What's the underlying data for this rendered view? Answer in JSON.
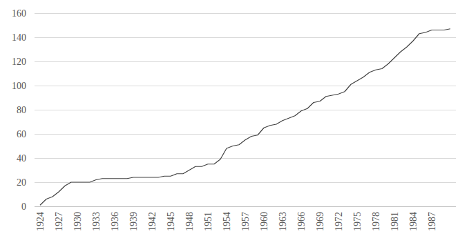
{
  "chart_data": {
    "type": "line",
    "categories": [
      "1924",
      null,
      null,
      "1927",
      null,
      null,
      "1930",
      null,
      null,
      "1933",
      null,
      null,
      "1936",
      null,
      null,
      "1939",
      null,
      null,
      "1942",
      null,
      null,
      "1945",
      null,
      null,
      "1948",
      null,
      null,
      "1951",
      null,
      null,
      "1954",
      null,
      null,
      "1957",
      null,
      null,
      "1960",
      null,
      null,
      "1963",
      null,
      null,
      "1966",
      null,
      null,
      "1969",
      null,
      null,
      "1972",
      null,
      null,
      "1975",
      null,
      null,
      "1978",
      null,
      null,
      "1981",
      null,
      null,
      "1984",
      null,
      null,
      "1987",
      null,
      null,
      null
    ],
    "values": [
      1,
      6,
      8,
      12,
      17,
      20,
      20,
      20,
      20,
      22,
      23,
      23,
      23,
      23,
      23,
      24,
      24,
      24,
      24,
      24,
      25,
      25,
      27,
      27,
      30,
      33,
      33,
      35,
      35,
      39,
      48,
      50,
      51,
      55,
      58,
      59,
      65,
      67,
      68,
      71,
      73,
      75,
      79,
      81,
      86,
      87,
      91,
      92,
      93,
      95,
      101,
      104,
      107,
      111,
      113,
      114,
      118,
      123,
      128,
      132,
      137,
      143,
      144,
      146,
      146,
      146,
      147
    ],
    "color": "#404040",
    "ylim": [
      0,
      160
    ],
    "yticks": [
      0,
      20,
      40,
      60,
      80,
      100,
      120,
      140,
      160
    ],
    "grid": true
  }
}
